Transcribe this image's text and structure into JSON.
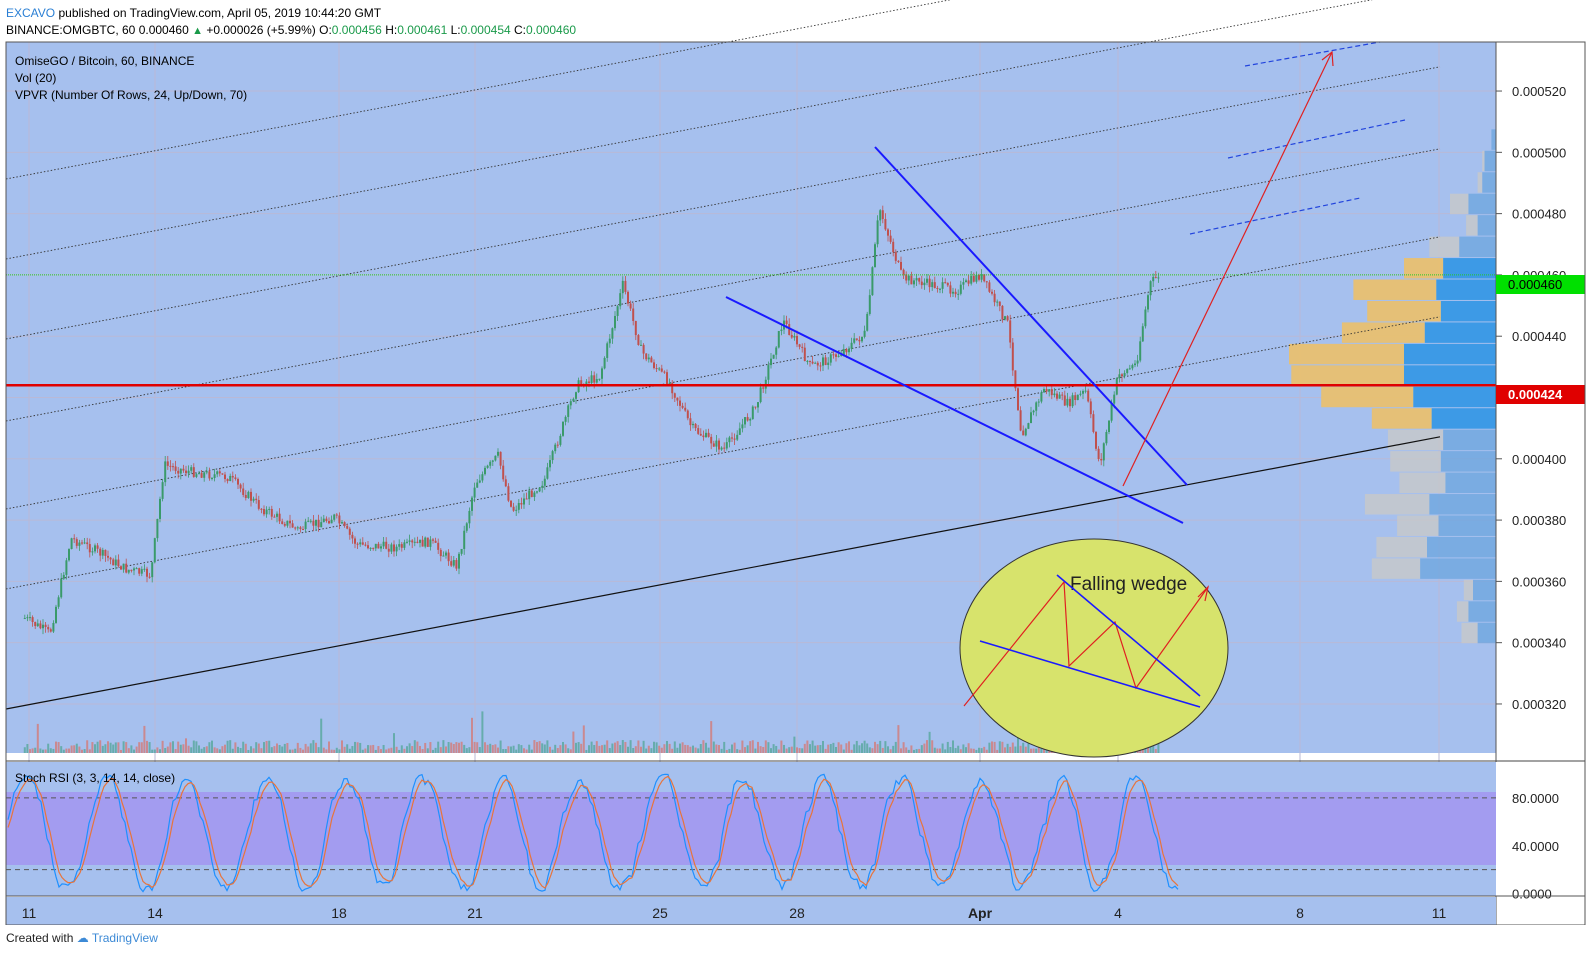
{
  "header": {
    "publisher": "EXCAVO",
    "published_text": "published on TradingView.com, April 05, 2019 10:44:20 GMT",
    "symbol": "BINANCE:OMGBTC, 60",
    "last": "0.000460",
    "change": "+0.000026 (+5.99%)",
    "o_label": "O:",
    "o_value": "0.000456",
    "h_label": "H:",
    "h_value": "0.000461",
    "l_label": "L:",
    "l_value": "0.000454",
    "c_label": "C:",
    "c_value": "0.000460"
  },
  "legend": {
    "title": "OmiseGO / Bitcoin, 60, BINANCE",
    "vol": "Vol (20)",
    "vpvr": "VPVR (Number Of Rows, 24, Up/Down, 70)"
  },
  "annotation": {
    "text": "Falling wedge"
  },
  "stoch_label": "Stoch RSI (3, 3, 14, 14, close)",
  "footer": {
    "created_with": "Created with",
    "brand": "TradingView"
  },
  "colors": {
    "background": "#a6c0ee",
    "stoch_band": "#a39cf0",
    "up_candle": "#3a9a6a",
    "down_candle": "#c0504d",
    "support_line": "#e00000",
    "last_price_tag": "#00e000",
    "wedge_lines": "#1a1aff",
    "vpvr_up": "#3d9ae6",
    "vpvr_down": "#e8c070"
  },
  "chart_data": {
    "type": "line",
    "subtype": "candlestick",
    "price_axis": {
      "ticks": [
        "0.000320",
        "0.000340",
        "0.000360",
        "0.000380",
        "0.000400",
        "0.000420",
        "0.000440",
        "0.000460",
        "0.000480",
        "0.000500",
        "0.000520"
      ],
      "last_price_label": "0.000460",
      "support_label": "0.000424",
      "range": [
        0.000304,
        0.000536
      ]
    },
    "time_axis": {
      "ticks": [
        "11",
        "14",
        "18",
        "21",
        "25",
        "28",
        "Apr",
        "4",
        "8",
        "11"
      ]
    },
    "stoch_axis": {
      "ticks": [
        "80.0000",
        "40.0000",
        "0.0000"
      ],
      "range": [
        -2,
        110
      ]
    },
    "price_series": [
      {
        "day": 10.9,
        "close": 0.000348
      },
      {
        "day": 11.5,
        "close": 0.000343
      },
      {
        "day": 12.0,
        "close": 0.000374
      },
      {
        "day": 12.6,
        "close": 0.00037
      },
      {
        "day": 13.3,
        "close": 0.000364
      },
      {
        "day": 13.9,
        "close": 0.000362
      },
      {
        "day": 14.2,
        "close": 0.000398
      },
      {
        "day": 14.7,
        "close": 0.000396
      },
      {
        "day": 15.6,
        "close": 0.000394
      },
      {
        "day": 16.3,
        "close": 0.000384
      },
      {
        "day": 17.1,
        "close": 0.000377
      },
      {
        "day": 17.9,
        "close": 0.000381
      },
      {
        "day": 18.4,
        "close": 0.000372
      },
      {
        "day": 19.3,
        "close": 0.000371
      },
      {
        "day": 20.0,
        "close": 0.000373
      },
      {
        "day": 20.6,
        "close": 0.000365
      },
      {
        "day": 21.0,
        "close": 0.000392
      },
      {
        "day": 21.5,
        "close": 0.000401
      },
      {
        "day": 21.8,
        "close": 0.000383
      },
      {
        "day": 22.5,
        "close": 0.000393
      },
      {
        "day": 23.2,
        "close": 0.000424
      },
      {
        "day": 23.7,
        "close": 0.000427
      },
      {
        "day": 24.2,
        "close": 0.000457
      },
      {
        "day": 24.6,
        "close": 0.000435
      },
      {
        "day": 25.2,
        "close": 0.000425
      },
      {
        "day": 25.7,
        "close": 0.00041
      },
      {
        "day": 26.4,
        "close": 0.000403
      },
      {
        "day": 27.1,
        "close": 0.000417
      },
      {
        "day": 27.7,
        "close": 0.000445
      },
      {
        "day": 28.3,
        "close": 0.00043
      },
      {
        "day": 28.9,
        "close": 0.000434
      },
      {
        "day": 29.5,
        "close": 0.000441
      },
      {
        "day": 29.8,
        "close": 0.000482
      },
      {
        "day": 30.3,
        "close": 0.000459
      },
      {
        "day": 30.9,
        "close": 0.000457
      },
      {
        "day": 31.5,
        "close": 0.000455
      },
      {
        "day": 32.0,
        "close": 0.00046
      },
      {
        "day": 32.6,
        "close": 0.000444
      },
      {
        "day": 32.9,
        "close": 0.000408
      },
      {
        "day": 33.4,
        "close": 0.000423
      },
      {
        "day": 33.9,
        "close": 0.000418
      },
      {
        "day": 34.3,
        "close": 0.000422
      },
      {
        "day": 34.6,
        "close": 0.000398
      },
      {
        "day": 35.0,
        "close": 0.000427
      },
      {
        "day": 35.4,
        "close": 0.000431
      },
      {
        "day": 35.7,
        "close": 0.000457
      },
      {
        "day": 35.9,
        "close": 0.00046
      }
    ],
    "vpvr_profile": [
      {
        "price": 0.000504,
        "up": 0.02,
        "down": 0.0
      },
      {
        "price": 0.000497,
        "up": 0.05,
        "down": 0.01
      },
      {
        "price": 0.00049,
        "up": 0.06,
        "down": 0.02
      },
      {
        "price": 0.000483,
        "up": 0.12,
        "down": 0.08
      },
      {
        "price": 0.000476,
        "up": 0.08,
        "down": 0.05
      },
      {
        "price": 0.000469,
        "up": 0.16,
        "down": 0.13
      },
      {
        "price": 0.000462,
        "up": 0.23,
        "down": 0.17
      },
      {
        "price": 0.000455,
        "up": 0.26,
        "down": 0.36
      },
      {
        "price": 0.000448,
        "up": 0.24,
        "down": 0.32
      },
      {
        "price": 0.000441,
        "up": 0.31,
        "down": 0.36
      },
      {
        "price": 0.000434,
        "up": 0.4,
        "down": 0.5
      },
      {
        "price": 0.000427,
        "up": 0.4,
        "down": 0.49
      },
      {
        "price": 0.00042,
        "up": 0.36,
        "down": 0.4
      },
      {
        "price": 0.000413,
        "up": 0.28,
        "down": 0.26
      },
      {
        "price": 0.000406,
        "up": 0.23,
        "down": 0.24
      },
      {
        "price": 0.000399,
        "up": 0.24,
        "down": 0.22
      },
      {
        "price": 0.000392,
        "up": 0.22,
        "down": 0.2
      },
      {
        "price": 0.000385,
        "up": 0.29,
        "down": 0.28
      },
      {
        "price": 0.000378,
        "up": 0.25,
        "down": 0.18
      },
      {
        "price": 0.000371,
        "up": 0.3,
        "down": 0.22
      },
      {
        "price": 0.000364,
        "up": 0.33,
        "down": 0.21
      },
      {
        "price": 0.000357,
        "up": 0.1,
        "down": 0.04
      },
      {
        "price": 0.00035,
        "up": 0.12,
        "down": 0.05
      },
      {
        "price": 0.000343,
        "up": 0.08,
        "down": 0.07
      }
    ]
  }
}
